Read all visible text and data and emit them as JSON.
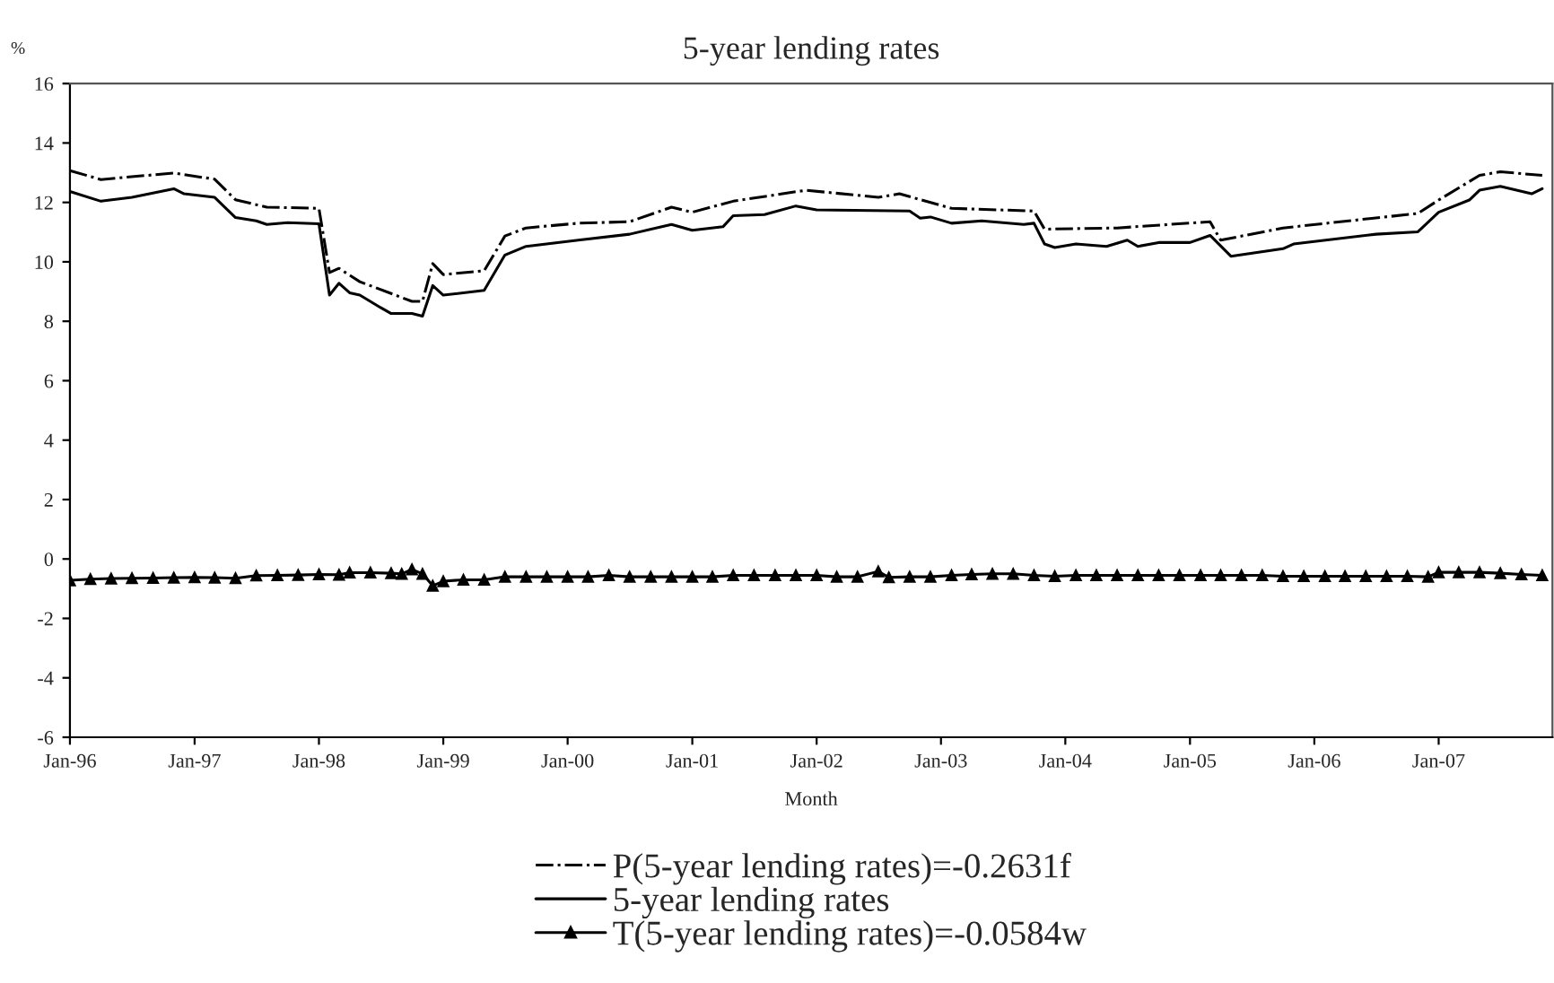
{
  "chart_data": {
    "type": "line",
    "title": "5-year lending rates",
    "xlabel": "Month",
    "ylabel": "%",
    "xlim": [
      "1996-01",
      "2007-12"
    ],
    "xticks": [
      {
        "value": "1996-01",
        "label": "Jan-96"
      },
      {
        "value": "1997-01",
        "label": "Jan-97"
      },
      {
        "value": "1998-01",
        "label": "Jan-98"
      },
      {
        "value": "1999-01",
        "label": "Jan-99"
      },
      {
        "value": "2000-01",
        "label": "Jan-00"
      },
      {
        "value": "2001-01",
        "label": "Jan-01"
      },
      {
        "value": "2002-01",
        "label": "Jan-02"
      },
      {
        "value": "2003-01",
        "label": "Jan-03"
      },
      {
        "value": "2004-01",
        "label": "Jan-04"
      },
      {
        "value": "2005-01",
        "label": "Jan-05"
      },
      {
        "value": "2006-01",
        "label": "Jan-06"
      },
      {
        "value": "2007-01",
        "label": "Jan-07"
      }
    ],
    "ylim": [
      -6,
      16
    ],
    "yticks": [
      -6,
      -4,
      -2,
      0,
      2,
      4,
      6,
      8,
      10,
      12,
      14,
      16
    ],
    "grid": false,
    "legend": "bottom",
    "series": [
      {
        "name": "P(5-year lending rates)=-0.2631f",
        "color": "#000000",
        "line_style": "dashdot",
        "marker": "none",
        "x": [
          "1996-01",
          "1996-04",
          "1996-11",
          "1997-03",
          "1997-05",
          "1997-08",
          "1998-01",
          "1998-02",
          "1998-03",
          "1998-05",
          "1998-10",
          "1998-11",
          "1998-12",
          "1999-01",
          "1999-05",
          "1999-07",
          "1999-09",
          "2000-02",
          "2000-07",
          "2000-11",
          "2001-01",
          "2001-05",
          "2001-12",
          "2002-07",
          "2002-09",
          "2003-02",
          "2003-10",
          "2003-11",
          "2004-06",
          "2005-03",
          "2005-04",
          "2005-10",
          "2006-11",
          "2007-01",
          "2007-05",
          "2007-07",
          "2007-11"
        ],
        "values": [
          13.07,
          12.77,
          12.99,
          12.78,
          12.09,
          11.84,
          11.8,
          9.64,
          9.78,
          9.33,
          8.67,
          8.67,
          9.94,
          9.57,
          9.7,
          10.87,
          11.14,
          11.3,
          11.35,
          11.84,
          11.67,
          12.04,
          12.41,
          12.17,
          12.29,
          11.8,
          11.71,
          11.1,
          11.14,
          11.35,
          10.73,
          11.14,
          11.63,
          12.08,
          12.91,
          13.03,
          12.91
        ]
      },
      {
        "name": "5-year lending rates",
        "color": "#000000",
        "line_style": "solid",
        "marker": "none",
        "x": [
          "1996-01",
          "1996-04",
          "1996-07",
          "1996-11",
          "1996-12",
          "1997-03",
          "1997-05",
          "1997-07",
          "1997-08",
          "1997-10",
          "1998-01",
          "1998-02",
          "1998-03",
          "1998-04",
          "1998-05",
          "1998-07",
          "1998-08",
          "1998-10",
          "1998-11",
          "1998-12",
          "1999-01",
          "1999-05",
          "1999-07",
          "1999-09",
          "2000-02",
          "2000-07",
          "2000-11",
          "2001-01",
          "2001-04",
          "2001-05",
          "2001-08",
          "2001-11",
          "2002-01",
          "2002-10",
          "2002-11",
          "2002-12",
          "2003-02",
          "2003-05",
          "2003-09",
          "2003-10",
          "2003-11",
          "2003-12",
          "2004-02",
          "2004-05",
          "2004-07",
          "2004-08",
          "2004-10",
          "2005-01",
          "2005-03",
          "2005-05",
          "2005-10",
          "2005-11",
          "2006-07",
          "2006-11",
          "2007-01",
          "2007-04",
          "2007-05",
          "2007-07",
          "2007-10",
          "2007-11"
        ],
        "values": [
          12.37,
          12.04,
          12.17,
          12.46,
          12.29,
          12.17,
          11.49,
          11.38,
          11.26,
          11.32,
          11.28,
          8.88,
          9.28,
          8.96,
          8.88,
          8.46,
          8.26,
          8.26,
          8.17,
          9.2,
          8.88,
          9.04,
          10.23,
          10.52,
          10.73,
          10.93,
          11.26,
          11.06,
          11.18,
          11.55,
          11.59,
          11.88,
          11.75,
          11.71,
          11.47,
          11.51,
          11.3,
          11.38,
          11.26,
          11.3,
          10.6,
          10.48,
          10.6,
          10.52,
          10.73,
          10.52,
          10.65,
          10.65,
          10.89,
          10.19,
          10.44,
          10.6,
          10.93,
          11.01,
          11.67,
          12.08,
          12.41,
          12.54,
          12.29,
          12.46
        ]
      },
      {
        "name": "T(5-year lending rates)=-0.0584w",
        "color": "#000000",
        "line_style": "solid",
        "marker": "triangle",
        "x": [
          "1996-01",
          "1996-03",
          "1996-05",
          "1996-07",
          "1996-09",
          "1996-11",
          "1997-01",
          "1997-03",
          "1997-05",
          "1997-07",
          "1997-09",
          "1997-11",
          "1998-01",
          "1998-03",
          "1998-04",
          "1998-06",
          "1998-08",
          "1998-09",
          "1998-10",
          "1998-11",
          "1998-12",
          "1999-01",
          "1999-03",
          "1999-05",
          "1999-07",
          "1999-09",
          "1999-11",
          "2000-01",
          "2000-03",
          "2000-05",
          "2000-07",
          "2000-09",
          "2000-11",
          "2001-01",
          "2001-03",
          "2001-05",
          "2001-07",
          "2001-09",
          "2001-11",
          "2002-01",
          "2002-03",
          "2002-05",
          "2002-07",
          "2002-08",
          "2002-10",
          "2002-12",
          "2003-02",
          "2003-04",
          "2003-06",
          "2003-08",
          "2003-10",
          "2003-12",
          "2004-02",
          "2004-04",
          "2004-06",
          "2004-08",
          "2004-10",
          "2004-12",
          "2005-02",
          "2005-04",
          "2005-06",
          "2005-08",
          "2005-10",
          "2005-12",
          "2006-02",
          "2006-04",
          "2006-06",
          "2006-08",
          "2006-10",
          "2006-12",
          "2007-01",
          "2007-03",
          "2007-05",
          "2007-07",
          "2007-09",
          "2007-11"
        ],
        "values": [
          -0.72,
          -0.68,
          -0.66,
          -0.65,
          -0.64,
          -0.63,
          -0.62,
          -0.63,
          -0.65,
          -0.56,
          -0.55,
          -0.54,
          -0.52,
          -0.53,
          -0.46,
          -0.46,
          -0.48,
          -0.5,
          -0.35,
          -0.5,
          -0.9,
          -0.75,
          -0.7,
          -0.7,
          -0.6,
          -0.6,
          -0.6,
          -0.6,
          -0.6,
          -0.55,
          -0.6,
          -0.6,
          -0.6,
          -0.6,
          -0.6,
          -0.55,
          -0.55,
          -0.55,
          -0.55,
          -0.55,
          -0.6,
          -0.6,
          -0.42,
          -0.62,
          -0.6,
          -0.6,
          -0.55,
          -0.52,
          -0.5,
          -0.5,
          -0.55,
          -0.58,
          -0.55,
          -0.55,
          -0.55,
          -0.55,
          -0.55,
          -0.55,
          -0.55,
          -0.55,
          -0.55,
          -0.55,
          -0.58,
          -0.58,
          -0.58,
          -0.58,
          -0.58,
          -0.58,
          -0.58,
          -0.6,
          -0.45,
          -0.45,
          -0.45,
          -0.48,
          -0.52,
          -0.55
        ]
      }
    ]
  }
}
